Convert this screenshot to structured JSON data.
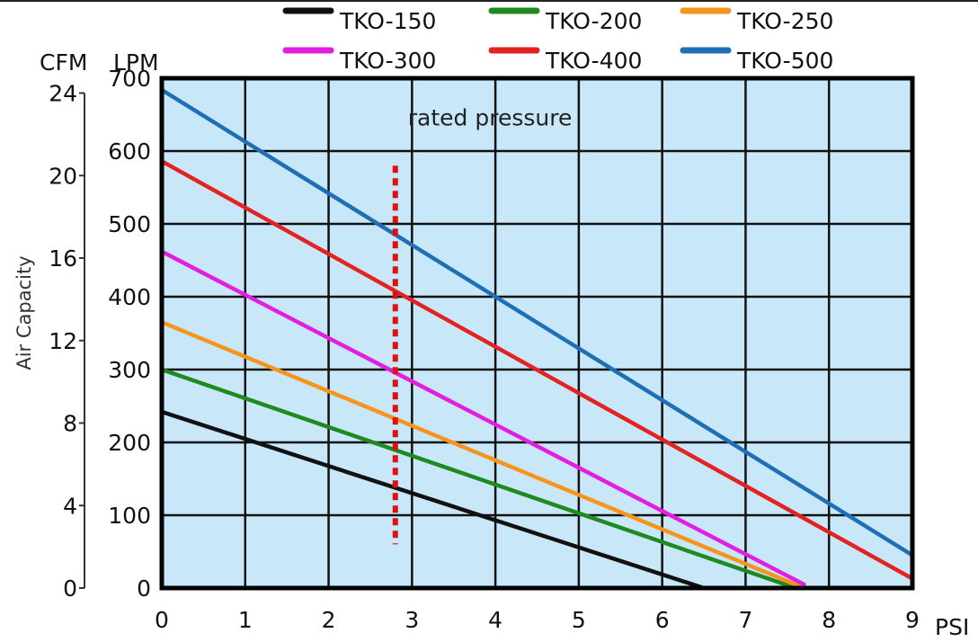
{
  "chart_data": {
    "type": "line",
    "x": [
      0,
      9
    ],
    "xlim": [
      0,
      9
    ],
    "xticks": [
      "0",
      "1",
      "2",
      "3",
      "4",
      "5",
      "6",
      "7",
      "8",
      "9"
    ],
    "xunit": "PSI",
    "ylim": [
      0,
      700
    ],
    "ylabel_unit": "LPM",
    "yticks": [
      "0",
      "100",
      "200",
      "300",
      "400",
      "500",
      "600",
      "700"
    ],
    "y2unit": "CFM",
    "y2ticks": [
      "0",
      "4",
      "8",
      "12",
      "16",
      "20",
      "24"
    ],
    "y2_axis_title": "Air Capacity",
    "grid": true,
    "legend": "top",
    "series": [
      {
        "name": "TKO-150",
        "color": "#111111",
        "points": [
          [
            0,
            242
          ],
          [
            6.5,
            0
          ]
        ]
      },
      {
        "name": "TKO-200",
        "color": "#1f8a1f",
        "points": [
          [
            0,
            300
          ],
          [
            7.6,
            0
          ]
        ]
      },
      {
        "name": "TKO-250",
        "color": "#f7941d",
        "points": [
          [
            0,
            365
          ],
          [
            7.7,
            0
          ]
        ]
      },
      {
        "name": "TKO-300",
        "color": "#e21ee0",
        "points": [
          [
            0,
            462
          ],
          [
            7.7,
            5
          ]
        ]
      },
      {
        "name": "TKO-400",
        "color": "#e32222",
        "points": [
          [
            0,
            586
          ],
          [
            9,
            13
          ]
        ]
      },
      {
        "name": "TKO-500",
        "color": "#1f6fb5",
        "points": [
          [
            0,
            684
          ],
          [
            9,
            45
          ]
        ]
      }
    ],
    "annotation": {
      "text": "rated pressure",
      "x": 2.8,
      "y_range": [
        60,
        580
      ],
      "color": "#e01010"
    }
  }
}
